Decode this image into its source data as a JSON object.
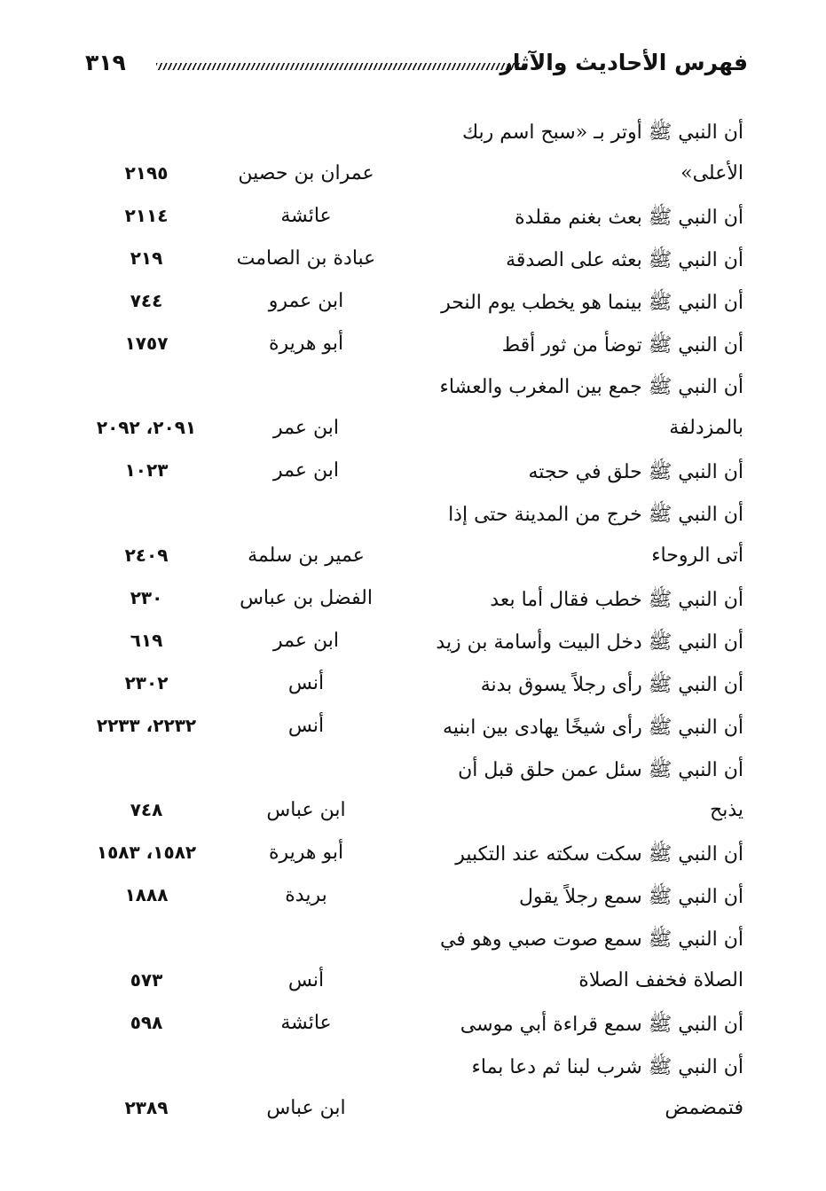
{
  "header": {
    "title": "فهرس الأحاديث والآثار",
    "page_number": "٣١٩"
  },
  "rows": [
    {
      "text": "أن النبي ﷺ أوتر بـ «سبح اسم ربك",
      "narrator": "",
      "ref": ""
    },
    {
      "text": "الأعلى»",
      "narrator": "عمران بن حصين",
      "ref": "٢١٩٥"
    },
    {
      "text": "أن النبي ﷺ بعث بغنم مقلدة",
      "narrator": "عائشة",
      "ref": "٢١١٤"
    },
    {
      "text": "أن النبي ﷺ بعثه على الصدقة",
      "narrator": "عبادة بن الصامت",
      "ref": "٢١٩"
    },
    {
      "text": "أن النبي ﷺ بينما هو يخطب يوم النحر",
      "narrator": "ابن عمرو",
      "ref": "٧٤٤"
    },
    {
      "text": "أن النبي ﷺ توضأ من ثور أقط",
      "narrator": "أبو هريرة",
      "ref": "١٧٥٧"
    },
    {
      "text": "أن النبي ﷺ جمع بين المغرب والعشاء",
      "narrator": "",
      "ref": ""
    },
    {
      "text": "بالمزدلفة",
      "narrator": "ابن عمر",
      "ref": "٢٠٩١، ٢٠٩٢"
    },
    {
      "text": "أن النبي ﷺ حلق في حجته",
      "narrator": "ابن عمر",
      "ref": "١٠٢٣"
    },
    {
      "text": "أن النبي ﷺ خرج من المدينة حتى إذا",
      "narrator": "",
      "ref": ""
    },
    {
      "text": "أتى الروحاء",
      "narrator": "عمير بن سلمة",
      "ref": "٢٤٠٩"
    },
    {
      "text": "أن النبي ﷺ خطب فقال أما بعد",
      "narrator": "الفضل بن عباس",
      "ref": "٢٣٠"
    },
    {
      "text": "أن النبي ﷺ دخل البيت وأسامة بن زيد",
      "narrator": "ابن عمر",
      "ref": "٦١٩"
    },
    {
      "text": "أن النبي ﷺ رأى رجلاً يسوق بدنة",
      "narrator": "أنس",
      "ref": "٢٣٠٢"
    },
    {
      "text": "أن النبي ﷺ رأى شيخًا يهادى بين ابنيه",
      "narrator": "أنس",
      "ref": "٢٢٣٢، ٢٢٣٣"
    },
    {
      "text": "أن النبي ﷺ سئل عمن حلق قبل أن",
      "narrator": "",
      "ref": ""
    },
    {
      "text": "يذبح",
      "narrator": "ابن عباس",
      "ref": "٧٤٨"
    },
    {
      "text": "أن النبي ﷺ سكت سكته عند التكبير",
      "narrator": "أبو هريرة",
      "ref": "١٥٨٢، ١٥٨٣"
    },
    {
      "text": "أن النبي ﷺ سمع رجلاً يقول",
      "narrator": "بريدة",
      "ref": "١٨٨٨"
    },
    {
      "text": "أن النبي ﷺ سمع صوت صبي وهو في",
      "narrator": "",
      "ref": ""
    },
    {
      "text": "الصلاة فخفف الصلاة",
      "narrator": "أنس",
      "ref": "٥٧٣"
    },
    {
      "text": "أن النبي ﷺ سمع قراءة أبي موسى",
      "narrator": "عائشة",
      "ref": "٥٩٨"
    },
    {
      "text": "أن النبي ﷺ شرب لبنا ثم دعا بماء",
      "narrator": "",
      "ref": ""
    },
    {
      "text": "فتمضمض",
      "narrator": "ابن عباس",
      "ref": "٢٣٨٩"
    }
  ]
}
